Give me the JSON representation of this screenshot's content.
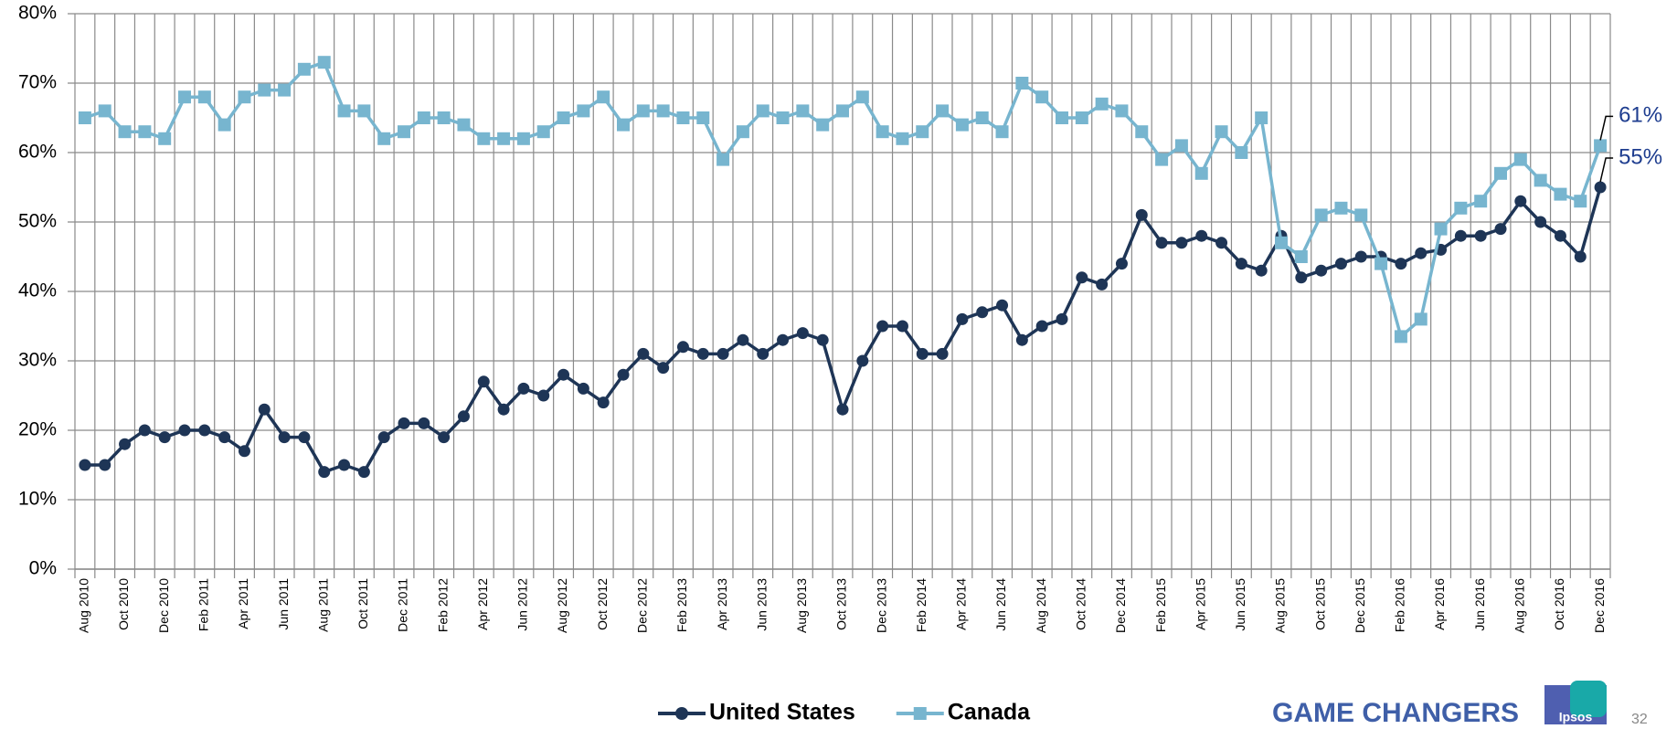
{
  "chart_data": {
    "type": "line",
    "categories": [
      "Aug 2010",
      null,
      "Oct 2010",
      null,
      "Dec 2010",
      null,
      "Feb 2011",
      null,
      "Apr 2011",
      null,
      "Jun 2011",
      null,
      "Aug 2011",
      null,
      "Oct 2011",
      null,
      "Dec 2011",
      null,
      "Feb 2012",
      null,
      "Apr 2012",
      null,
      "Jun 2012",
      null,
      "Aug 2012",
      null,
      "Oct 2012",
      null,
      "Dec 2012",
      null,
      "Feb 2013",
      null,
      "Apr 2013",
      null,
      "Jun 2013",
      null,
      "Aug 2013",
      null,
      "Oct 2013",
      null,
      "Dec 2013",
      null,
      "Feb 2014",
      null,
      "Apr 2014",
      null,
      "Jun 2014",
      null,
      "Aug 2014",
      null,
      "Oct 2014",
      null,
      "Dec 2014",
      null,
      "Feb 2015",
      null,
      "Apr 2015",
      null,
      "Jun 2015",
      null,
      "Aug 2015",
      null,
      "Oct 2015",
      null,
      "Dec 2015",
      null,
      "Feb 2016",
      null,
      "Apr 2016",
      null,
      "Jun 2016",
      null,
      "Aug 2016",
      null,
      "Oct 2016",
      null,
      "Dec 2016"
    ],
    "series": [
      {
        "name": "United States",
        "color": "#1e3556",
        "marker": "circle",
        "values": [
          15,
          15,
          18,
          20,
          19,
          20,
          20,
          19,
          17,
          23,
          19,
          19,
          14,
          15,
          14,
          19,
          21,
          21,
          19,
          22,
          27,
          23,
          26,
          25,
          28,
          26,
          24,
          28,
          31,
          29,
          32,
          31,
          31,
          33,
          31,
          33,
          34,
          33,
          23,
          30,
          35,
          35,
          31,
          31,
          36,
          37,
          38,
          33,
          35,
          36,
          42,
          41,
          44,
          51,
          47,
          47,
          48,
          47,
          44,
          43,
          48,
          42,
          43,
          44,
          45,
          45,
          44,
          45.5,
          46,
          48,
          48,
          49,
          53,
          50,
          48,
          45,
          55
        ],
        "value_labels": [
          null,
          null,
          null,
          null,
          null,
          null,
          null,
          null,
          null,
          null,
          null,
          null,
          null,
          null,
          null,
          null,
          null,
          null,
          null,
          null,
          null,
          null,
          null,
          null,
          null,
          null,
          null,
          null,
          null,
          null,
          null,
          null,
          null,
          null,
          null,
          null,
          null,
          null,
          null,
          null,
          null,
          null,
          null,
          null,
          null,
          null,
          null,
          null,
          null,
          null,
          null,
          null,
          null,
          null,
          null,
          null,
          null,
          null,
          null,
          null,
          null,
          null,
          null,
          null,
          null,
          null,
          null,
          null,
          null,
          null,
          null,
          null,
          null,
          null,
          null,
          null,
          "55%"
        ]
      },
      {
        "name": "Canada",
        "color": "#77b5cf",
        "marker": "square",
        "values": [
          65,
          66,
          63,
          63,
          62,
          68,
          68,
          64,
          68,
          69,
          69,
          72,
          73,
          66,
          66,
          62,
          63,
          65,
          65,
          64,
          62,
          62,
          62,
          63,
          65,
          66,
          68,
          64,
          66,
          66,
          65,
          65,
          59,
          63,
          66,
          65,
          66,
          64,
          66,
          68,
          63,
          62,
          63,
          66,
          64,
          65,
          63,
          70,
          68,
          65,
          65,
          67,
          66,
          63,
          59,
          61,
          57,
          63,
          60,
          65,
          47,
          45,
          51,
          52,
          51,
          44,
          33.5,
          36,
          49,
          52,
          53,
          57,
          59,
          56,
          54,
          53,
          61
        ],
        "value_labels": [
          null,
          null,
          null,
          null,
          null,
          null,
          null,
          null,
          null,
          null,
          null,
          null,
          null,
          null,
          null,
          null,
          null,
          null,
          null,
          null,
          null,
          null,
          null,
          null,
          null,
          null,
          null,
          null,
          null,
          null,
          null,
          null,
          null,
          null,
          null,
          null,
          null,
          null,
          null,
          null,
          null,
          null,
          null,
          null,
          null,
          null,
          null,
          null,
          null,
          null,
          null,
          null,
          null,
          null,
          null,
          null,
          null,
          null,
          null,
          null,
          null,
          null,
          null,
          null,
          null,
          null,
          null,
          null,
          null,
          null,
          null,
          null,
          null,
          null,
          null,
          null,
          "61%"
        ]
      }
    ],
    "ylim": [
      0,
      80
    ],
    "yticks": [
      {
        "value": 0,
        "label": "0%"
      },
      {
        "value": 10,
        "label": "10%"
      },
      {
        "value": 20,
        "label": "20%"
      },
      {
        "value": 30,
        "label": "30%"
      },
      {
        "value": 40,
        "label": "40%"
      },
      {
        "value": 50,
        "label": "50%"
      },
      {
        "value": 60,
        "label": "60%"
      },
      {
        "value": 70,
        "label": "70%"
      },
      {
        "value": 80,
        "label": "80%"
      }
    ],
    "grid": true,
    "legend": "bottom"
  },
  "footer": {
    "brand": "GAME CHANGERS",
    "logo": "Ipsos",
    "page": "32"
  }
}
